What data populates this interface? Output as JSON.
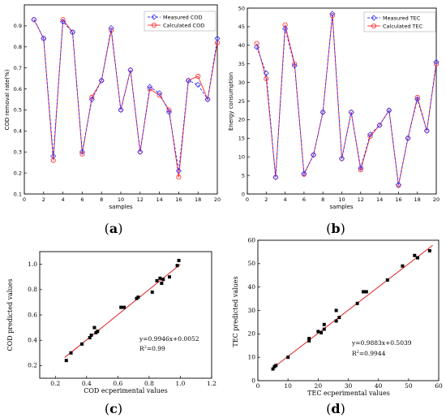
{
  "colors": {
    "measured": "#3333ff",
    "calculated": "#ff2222",
    "fit_line": "#e02020",
    "points": "#000000"
  },
  "captions": {
    "a": {
      "open": "(",
      "letter": "a",
      "close": ")"
    },
    "b": {
      "open": "(",
      "letter": "b",
      "close": ")"
    },
    "c": {
      "open": "(",
      "letter": "c",
      "close": ")"
    },
    "d": {
      "open": "(",
      "letter": "d",
      "close": ")"
    }
  },
  "chart_data": [
    {
      "id": "a",
      "type": "line",
      "xlabel": "samples",
      "ylabel": "COD removal rate(%)",
      "xlim": [
        0,
        20
      ],
      "ylim": [
        0.1,
        1.0
      ],
      "xticks": [
        0,
        2,
        4,
        6,
        8,
        10,
        12,
        14,
        16,
        18,
        20
      ],
      "yticks": [
        0.1,
        0.2,
        0.3,
        0.4,
        0.5,
        0.6,
        0.7,
        0.8,
        0.9
      ],
      "legend_position": "top-right",
      "x": [
        1,
        2,
        3,
        4,
        5,
        6,
        7,
        8,
        9,
        10,
        11,
        12,
        13,
        14,
        15,
        16,
        17,
        18,
        19,
        20
      ],
      "series": [
        {
          "name": "Measured COD",
          "marker": "diamond",
          "values": [
            0.93,
            0.84,
            0.28,
            0.92,
            0.87,
            0.3,
            0.55,
            0.64,
            0.89,
            0.5,
            0.69,
            0.3,
            0.61,
            0.58,
            0.49,
            0.21,
            0.64,
            0.62,
            0.55,
            0.84
          ]
        },
        {
          "name": "Calculated COD",
          "marker": "circle",
          "values": [
            0.93,
            0.84,
            0.26,
            0.93,
            0.87,
            0.29,
            0.56,
            0.64,
            0.88,
            0.5,
            0.69,
            0.3,
            0.6,
            0.57,
            0.5,
            0.18,
            0.64,
            0.66,
            0.55,
            0.82
          ]
        }
      ]
    },
    {
      "id": "b",
      "type": "line",
      "xlabel": "samples",
      "ylabel": "Energy consumption",
      "xlim": [
        0,
        20
      ],
      "ylim": [
        0,
        50
      ],
      "xticks": [
        0,
        2,
        4,
        6,
        8,
        10,
        12,
        14,
        16,
        18,
        20
      ],
      "yticks": [
        0,
        5,
        10,
        15,
        20,
        25,
        30,
        35,
        40,
        45,
        50
      ],
      "legend_position": "top-right",
      "x": [
        1,
        2,
        3,
        4,
        5,
        6,
        7,
        8,
        9,
        10,
        11,
        12,
        13,
        14,
        15,
        16,
        17,
        18,
        19,
        20
      ],
      "series": [
        {
          "name": "Measured TEC",
          "marker": "diamond",
          "values": [
            39.5,
            32.5,
            4.5,
            44.5,
            34.5,
            5.5,
            10.5,
            22,
            48.5,
            9.5,
            22,
            7,
            16,
            18.5,
            22.5,
            2.5,
            15,
            25.5,
            17,
            35.5
          ]
        },
        {
          "name": "Calculated TEC",
          "marker": "circle",
          "values": [
            40.5,
            31,
            4.5,
            45.5,
            35,
            5.3,
            10.5,
            22,
            48,
            9.5,
            22,
            6.5,
            15.5,
            18.5,
            22.5,
            2.3,
            15,
            26,
            17,
            35
          ]
        }
      ]
    },
    {
      "id": "c",
      "type": "scatter",
      "xlabel": "COD ecperimental values",
      "ylabel": "COD predicted values",
      "xlim": [
        0.1,
        1.2
      ],
      "ylim": [
        0.1,
        1.1
      ],
      "xticks": [
        0.2,
        0.4,
        0.6,
        0.8,
        1.0,
        1.2
      ],
      "xtick_labels": [
        "0.2",
        "0.4",
        "0.6",
        "0.8",
        "1.0",
        "1.2"
      ],
      "yticks": [
        0.2,
        0.4,
        0.6,
        0.8,
        1.0
      ],
      "ytick_labels": [
        "0.2",
        "0.4",
        "0.6",
        "0.8",
        "1.0"
      ],
      "equation": "y=0.9946x+0.0052",
      "r2_prefix": "R",
      "r2_sup": "2",
      "r2_suffix": "=0.99",
      "fit": {
        "slope": 0.9946,
        "intercept": 0.0052,
        "x_range": [
          0.26,
          1.0
        ]
      },
      "points": [
        [
          0.27,
          0.24
        ],
        [
          0.3,
          0.3
        ],
        [
          0.37,
          0.37
        ],
        [
          0.42,
          0.42
        ],
        [
          0.43,
          0.44
        ],
        [
          0.45,
          0.5
        ],
        [
          0.46,
          0.46
        ],
        [
          0.47,
          0.47
        ],
        [
          0.62,
          0.66
        ],
        [
          0.64,
          0.66
        ],
        [
          0.72,
          0.73
        ],
        [
          0.73,
          0.74
        ],
        [
          0.82,
          0.78
        ],
        [
          0.85,
          0.87
        ],
        [
          0.87,
          0.89
        ],
        [
          0.88,
          0.85
        ],
        [
          0.89,
          0.88
        ],
        [
          0.93,
          0.9
        ],
        [
          0.98,
          0.99
        ],
        [
          0.99,
          1.03
        ]
      ]
    },
    {
      "id": "d",
      "type": "scatter",
      "xlabel": "TEC ecperimental values",
      "ylabel": "TEC predicted values",
      "xlim": [
        0,
        60
      ],
      "ylim": [
        0,
        60
      ],
      "xticks": [
        0,
        10,
        20,
        30,
        40,
        50,
        60
      ],
      "xtick_labels": [
        "0",
        "10",
        "20",
        "30",
        "40",
        "50",
        "60"
      ],
      "yticks": [
        0,
        10,
        20,
        30,
        40,
        50,
        60
      ],
      "ytick_labels": [
        "0",
        "10",
        "20",
        "30",
        "40",
        "50",
        "60"
      ],
      "equation": "y=0.9883x+0.5039",
      "r2_prefix": "R",
      "r2_sup": "2",
      "r2_suffix": "=0.9944",
      "fit": {
        "slope": 0.9883,
        "intercept": 0.5039,
        "x_range": [
          4.5,
          58
        ]
      },
      "points": [
        [
          5,
          5
        ],
        [
          5.5,
          6
        ],
        [
          6,
          6.5
        ],
        [
          10,
          10
        ],
        [
          17,
          17
        ],
        [
          17,
          18
        ],
        [
          20,
          21
        ],
        [
          21,
          20.5
        ],
        [
          22,
          22
        ],
        [
          22,
          24
        ],
        [
          26,
          25.5
        ],
        [
          26,
          30
        ],
        [
          27,
          27
        ],
        [
          33,
          33
        ],
        [
          35,
          38
        ],
        [
          36,
          38
        ],
        [
          43,
          43
        ],
        [
          48,
          49
        ],
        [
          52,
          53.5
        ],
        [
          53,
          52.5
        ],
        [
          57,
          55.5
        ]
      ]
    }
  ]
}
